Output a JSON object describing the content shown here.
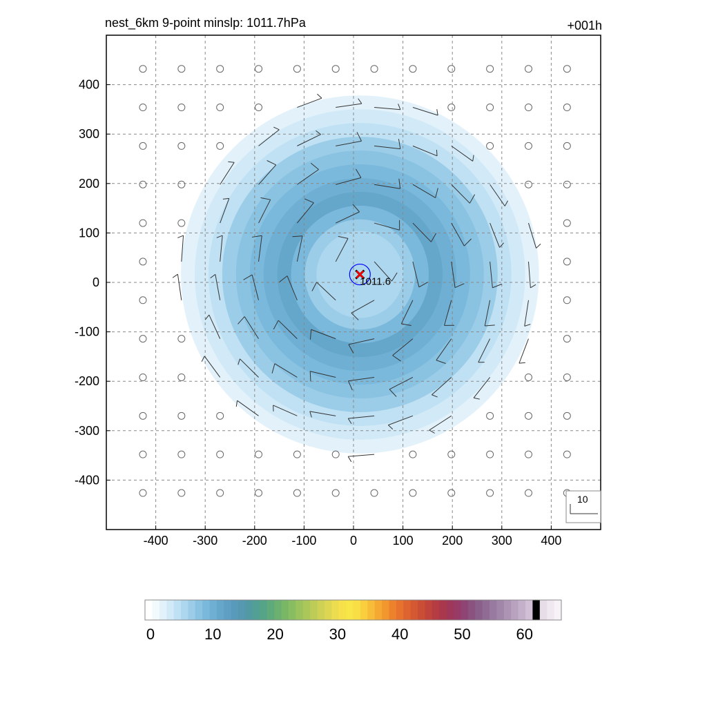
{
  "header": {
    "title": "nest_6km  9-point minslp: 1011.7hPa",
    "time_label": "+001h"
  },
  "colors": {
    "center_circle": "#0000ff",
    "center_marker": "#ff0000",
    "grid": "#888888",
    "barb": "#333333",
    "frame": "#000000"
  },
  "chart_data": {
    "type": "heatmap",
    "description_field": "filled wind speed contours with wind barbs",
    "x_ticks": [
      -400,
      -300,
      -200,
      -100,
      0,
      100,
      200,
      300,
      400
    ],
    "y_ticks": [
      400,
      300,
      200,
      100,
      0,
      -100,
      -200,
      -300,
      -400
    ],
    "xlim": [
      -500,
      500
    ],
    "ylim": [
      -500,
      500
    ],
    "grid": true,
    "center": {
      "x": 13,
      "y": 16,
      "pressure_label": "1011.6"
    },
    "field_outer_radius": 390,
    "field_peak_radius": 160,
    "field_peak_value": 12,
    "barb_rows_y": [
      432,
      354,
      276,
      198,
      120,
      42,
      -36,
      -114,
      -192,
      -270,
      -348,
      -426
    ],
    "barb_cols_x": [
      -426,
      -348,
      -270,
      -192,
      -114,
      -36,
      42,
      120,
      198,
      276,
      354,
      432
    ],
    "reference_vector": {
      "label": "10"
    },
    "colorbar": {
      "min": 0,
      "max": 66,
      "ticks": [
        0,
        10,
        20,
        30,
        40,
        50,
        60
      ],
      "tick_labels": [
        "0",
        "10",
        "20",
        "30",
        "40",
        "50",
        "60"
      ],
      "colors": [
        "#ffffff",
        "#f3fafd",
        "#e3f2fa",
        "#d2eaf7",
        "#bfe1f3",
        "#acd7ee",
        "#9bcde8",
        "#8ac3e2",
        "#7ab9db",
        "#6eafd3",
        "#65a6cb",
        "#5e9fc3",
        "#589aba",
        "#5598b0",
        "#529aa3",
        "#519f95",
        "#55a487",
        "#5faa7a",
        "#6bb070",
        "#79b767",
        "#89bd61",
        "#9ac25d",
        "#abc75a",
        "#bccc57",
        "#cdd155",
        "#ddd653",
        "#ecdc50",
        "#f7e14b",
        "#f8e649",
        "#f9df45",
        "#f9cf3f",
        "#f8bd38",
        "#f6a932",
        "#f2962e",
        "#ed822c",
        "#e6722d",
        "#dd642f",
        "#d45832",
        "#ca4d36",
        "#c0443b",
        "#b53c42",
        "#aa384c",
        "#9e3759",
        "#983b67",
        "#8f4573",
        "#8a527f",
        "#8a5f8a",
        "#906c95",
        "#98799f",
        "#a286aa",
        "#ad94b4",
        "#b8a2bf",
        "#c4b0ca",
        "#d0bfd5",
        "#dcceе0",
        "#e7dde9",
        "#f0e8f0",
        "#f7f2f7"
      ]
    }
  }
}
